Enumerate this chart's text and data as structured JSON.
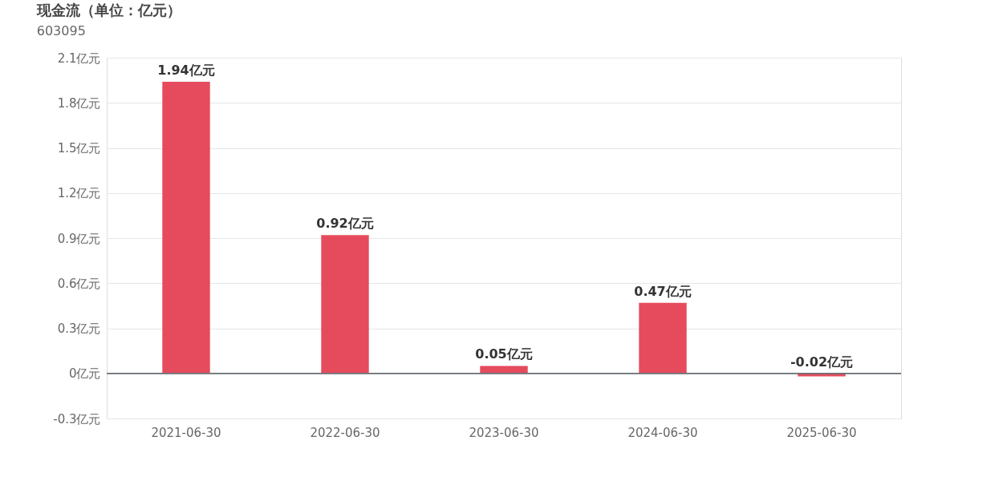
{
  "chart_data": {
    "type": "bar",
    "title": "现金流（单位：亿元）",
    "subtitle": "603095",
    "categories": [
      "2021-06-30",
      "2022-06-30",
      "2023-06-30",
      "2024-06-30",
      "2025-06-30"
    ],
    "values": [
      1.94,
      0.92,
      0.05,
      0.47,
      -0.02
    ],
    "value_labels": [
      "1.94亿元",
      "0.92亿元",
      "0.05亿元",
      "0.47亿元",
      "-0.02亿元"
    ],
    "color": "#e64b5d",
    "ylim": [
      -0.3,
      2.1
    ],
    "yticks": [
      {
        "value": -0.3,
        "label": "-0.3亿元"
      },
      {
        "value": 0,
        "label": "0亿元"
      },
      {
        "value": 0.3,
        "label": "0.3亿元"
      },
      {
        "value": 0.6,
        "label": "0.6亿元"
      },
      {
        "value": 0.9,
        "label": "0.9亿元"
      },
      {
        "value": 1.2,
        "label": "1.2亿元"
      },
      {
        "value": 1.5,
        "label": "1.5亿元"
      },
      {
        "value": 1.8,
        "label": "1.8亿元"
      },
      {
        "value": 2.1,
        "label": "2.1亿元"
      }
    ],
    "grid": "y"
  }
}
